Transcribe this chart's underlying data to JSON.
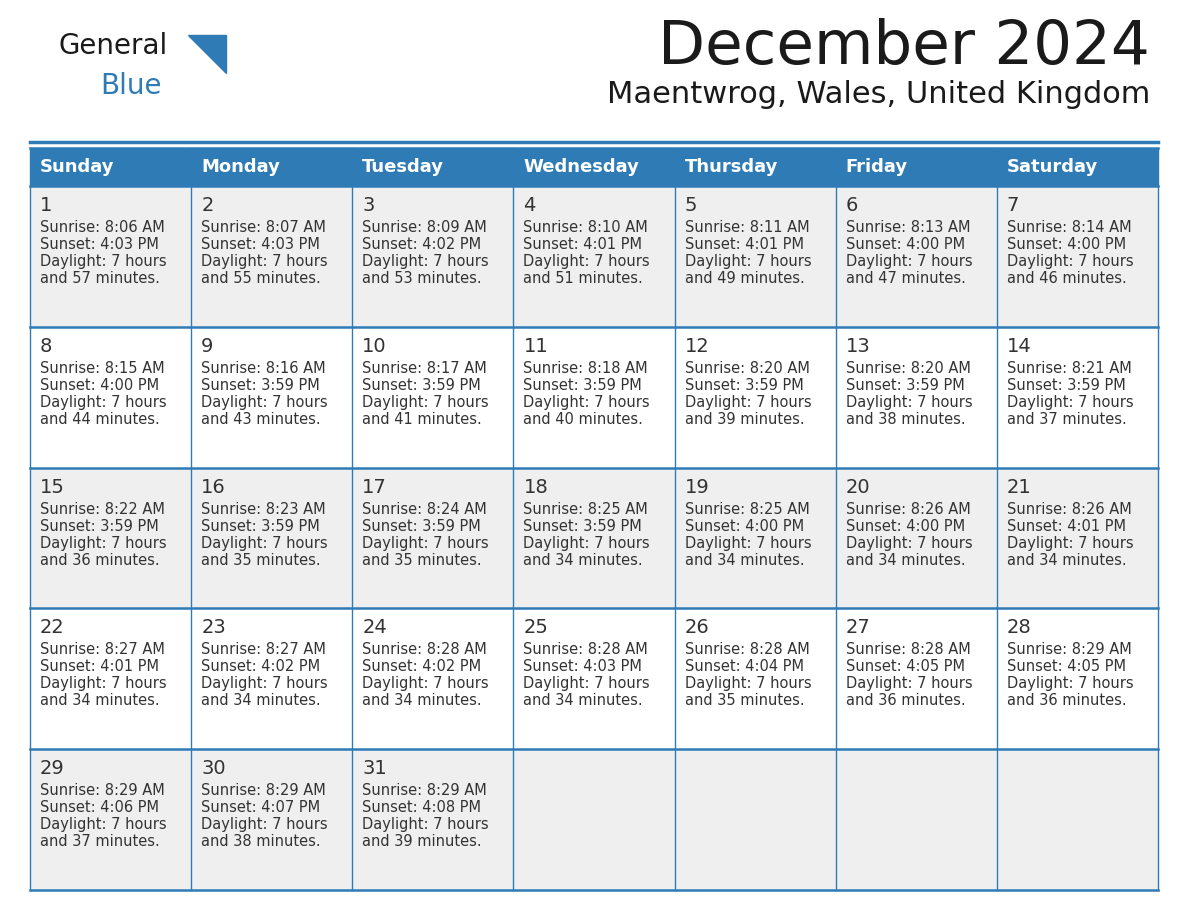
{
  "title": "December 2024",
  "subtitle": "Maentwrog, Wales, United Kingdom",
  "header_bg_color": "#2E7BB5",
  "header_text_color": "#FFFFFF",
  "day_names": [
    "Sunday",
    "Monday",
    "Tuesday",
    "Wednesday",
    "Thursday",
    "Friday",
    "Saturday"
  ],
  "cell_bg_even": "#EFEFEF",
  "cell_bg_odd": "#FFFFFF",
  "cell_border_color": "#2E7BB5",
  "text_color": "#333333",
  "title_color": "#1a1a1a",
  "logo_text_color": "#1a1a1a",
  "logo_blue_color": "#2E7BB5",
  "days": [
    {
      "day": 1,
      "col": 0,
      "row": 0,
      "sunrise": "8:06 AM",
      "sunset": "4:03 PM",
      "daylight_hours": 7,
      "daylight_minutes": 57
    },
    {
      "day": 2,
      "col": 1,
      "row": 0,
      "sunrise": "8:07 AM",
      "sunset": "4:03 PM",
      "daylight_hours": 7,
      "daylight_minutes": 55
    },
    {
      "day": 3,
      "col": 2,
      "row": 0,
      "sunrise": "8:09 AM",
      "sunset": "4:02 PM",
      "daylight_hours": 7,
      "daylight_minutes": 53
    },
    {
      "day": 4,
      "col": 3,
      "row": 0,
      "sunrise": "8:10 AM",
      "sunset": "4:01 PM",
      "daylight_hours": 7,
      "daylight_minutes": 51
    },
    {
      "day": 5,
      "col": 4,
      "row": 0,
      "sunrise": "8:11 AM",
      "sunset": "4:01 PM",
      "daylight_hours": 7,
      "daylight_minutes": 49
    },
    {
      "day": 6,
      "col": 5,
      "row": 0,
      "sunrise": "8:13 AM",
      "sunset": "4:00 PM",
      "daylight_hours": 7,
      "daylight_minutes": 47
    },
    {
      "day": 7,
      "col": 6,
      "row": 0,
      "sunrise": "8:14 AM",
      "sunset": "4:00 PM",
      "daylight_hours": 7,
      "daylight_minutes": 46
    },
    {
      "day": 8,
      "col": 0,
      "row": 1,
      "sunrise": "8:15 AM",
      "sunset": "4:00 PM",
      "daylight_hours": 7,
      "daylight_minutes": 44
    },
    {
      "day": 9,
      "col": 1,
      "row": 1,
      "sunrise": "8:16 AM",
      "sunset": "3:59 PM",
      "daylight_hours": 7,
      "daylight_minutes": 43
    },
    {
      "day": 10,
      "col": 2,
      "row": 1,
      "sunrise": "8:17 AM",
      "sunset": "3:59 PM",
      "daylight_hours": 7,
      "daylight_minutes": 41
    },
    {
      "day": 11,
      "col": 3,
      "row": 1,
      "sunrise": "8:18 AM",
      "sunset": "3:59 PM",
      "daylight_hours": 7,
      "daylight_minutes": 40
    },
    {
      "day": 12,
      "col": 4,
      "row": 1,
      "sunrise": "8:20 AM",
      "sunset": "3:59 PM",
      "daylight_hours": 7,
      "daylight_minutes": 39
    },
    {
      "day": 13,
      "col": 5,
      "row": 1,
      "sunrise": "8:20 AM",
      "sunset": "3:59 PM",
      "daylight_hours": 7,
      "daylight_minutes": 38
    },
    {
      "day": 14,
      "col": 6,
      "row": 1,
      "sunrise": "8:21 AM",
      "sunset": "3:59 PM",
      "daylight_hours": 7,
      "daylight_minutes": 37
    },
    {
      "day": 15,
      "col": 0,
      "row": 2,
      "sunrise": "8:22 AM",
      "sunset": "3:59 PM",
      "daylight_hours": 7,
      "daylight_minutes": 36
    },
    {
      "day": 16,
      "col": 1,
      "row": 2,
      "sunrise": "8:23 AM",
      "sunset": "3:59 PM",
      "daylight_hours": 7,
      "daylight_minutes": 35
    },
    {
      "day": 17,
      "col": 2,
      "row": 2,
      "sunrise": "8:24 AM",
      "sunset": "3:59 PM",
      "daylight_hours": 7,
      "daylight_minutes": 35
    },
    {
      "day": 18,
      "col": 3,
      "row": 2,
      "sunrise": "8:25 AM",
      "sunset": "3:59 PM",
      "daylight_hours": 7,
      "daylight_minutes": 34
    },
    {
      "day": 19,
      "col": 4,
      "row": 2,
      "sunrise": "8:25 AM",
      "sunset": "4:00 PM",
      "daylight_hours": 7,
      "daylight_minutes": 34
    },
    {
      "day": 20,
      "col": 5,
      "row": 2,
      "sunrise": "8:26 AM",
      "sunset": "4:00 PM",
      "daylight_hours": 7,
      "daylight_minutes": 34
    },
    {
      "day": 21,
      "col": 6,
      "row": 2,
      "sunrise": "8:26 AM",
      "sunset": "4:01 PM",
      "daylight_hours": 7,
      "daylight_minutes": 34
    },
    {
      "day": 22,
      "col": 0,
      "row": 3,
      "sunrise": "8:27 AM",
      "sunset": "4:01 PM",
      "daylight_hours": 7,
      "daylight_minutes": 34
    },
    {
      "day": 23,
      "col": 1,
      "row": 3,
      "sunrise": "8:27 AM",
      "sunset": "4:02 PM",
      "daylight_hours": 7,
      "daylight_minutes": 34
    },
    {
      "day": 24,
      "col": 2,
      "row": 3,
      "sunrise": "8:28 AM",
      "sunset": "4:02 PM",
      "daylight_hours": 7,
      "daylight_minutes": 34
    },
    {
      "day": 25,
      "col": 3,
      "row": 3,
      "sunrise": "8:28 AM",
      "sunset": "4:03 PM",
      "daylight_hours": 7,
      "daylight_minutes": 34
    },
    {
      "day": 26,
      "col": 4,
      "row": 3,
      "sunrise": "8:28 AM",
      "sunset": "4:04 PM",
      "daylight_hours": 7,
      "daylight_minutes": 35
    },
    {
      "day": 27,
      "col": 5,
      "row": 3,
      "sunrise": "8:28 AM",
      "sunset": "4:05 PM",
      "daylight_hours": 7,
      "daylight_minutes": 36
    },
    {
      "day": 28,
      "col": 6,
      "row": 3,
      "sunrise": "8:29 AM",
      "sunset": "4:05 PM",
      "daylight_hours": 7,
      "daylight_minutes": 36
    },
    {
      "day": 29,
      "col": 0,
      "row": 4,
      "sunrise": "8:29 AM",
      "sunset": "4:06 PM",
      "daylight_hours": 7,
      "daylight_minutes": 37
    },
    {
      "day": 30,
      "col": 1,
      "row": 4,
      "sunrise": "8:29 AM",
      "sunset": "4:07 PM",
      "daylight_hours": 7,
      "daylight_minutes": 38
    },
    {
      "day": 31,
      "col": 2,
      "row": 4,
      "sunrise": "8:29 AM",
      "sunset": "4:08 PM",
      "daylight_hours": 7,
      "daylight_minutes": 39
    }
  ]
}
